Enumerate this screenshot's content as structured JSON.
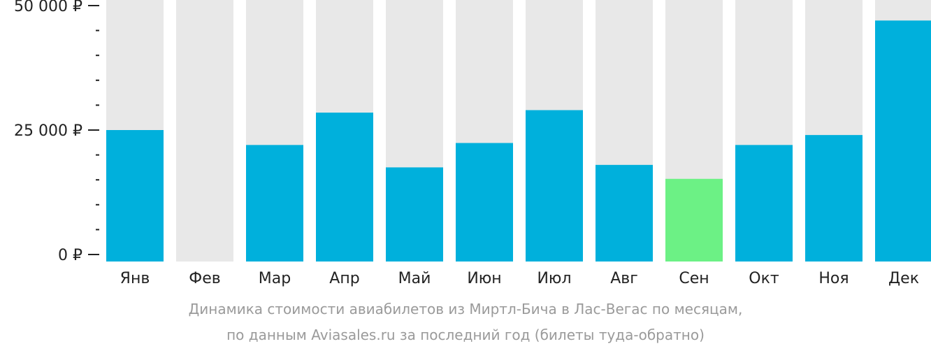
{
  "chart_data": {
    "type": "bar",
    "categories": [
      "Янв",
      "Фев",
      "Мар",
      "Апр",
      "Май",
      "Июн",
      "Июл",
      "Авг",
      "Сен",
      "Окт",
      "Ноя",
      "Дек"
    ],
    "values": [
      25000,
      null,
      22000,
      28500,
      17500,
      22400,
      29000,
      18000,
      15200,
      22000,
      24000,
      47000
    ],
    "highlight_index": 8,
    "ylim": [
      0,
      52000
    ],
    "y_ticks": [
      {
        "value": 0,
        "label": "0 ₽"
      },
      {
        "value": 25000,
        "label": "25 000 ₽"
      },
      {
        "value": 50000,
        "label": "50 000 ₽"
      }
    ],
    "y_minor_step": 5000,
    "colors": {
      "bar": "#00b0dc",
      "highlight": "#6cf185",
      "background_bar": "#e8e8e8",
      "axis": "#222222"
    },
    "caption_line1": "Динамика стоимости авиабилетов из Миртл-Бича в Лас-Вегас по месяцам,",
    "caption_line2": "по данным Aviasales.ru за последний год (билеты туда-обратно)"
  }
}
